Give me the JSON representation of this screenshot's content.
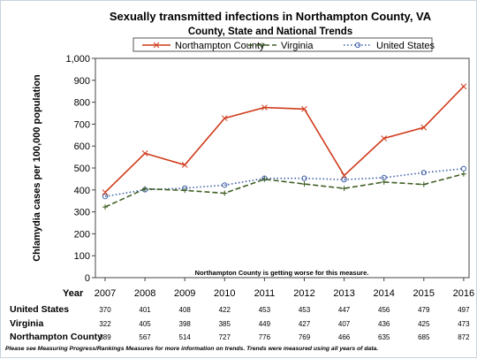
{
  "colors": {
    "northampton": "#d03c1c",
    "virginia": "#3f5f24",
    "united_states": "#3f5fa8",
    "frame": "#c8d2dc",
    "plot_border": "#444444"
  },
  "chart_data": {
    "type": "line",
    "title": "Sexually transmitted infections in Northampton County, VA",
    "subtitle": "County, State and National Trends",
    "xlabel": "Year",
    "ylabel": "Chlamydia cases per 100,000 population",
    "categories": [
      "2007",
      "2008",
      "2009",
      "2010",
      "2011",
      "2012",
      "2013",
      "2014",
      "2015",
      "2016"
    ],
    "ylim": [
      0,
      1000
    ],
    "yticks": [
      0,
      100,
      200,
      300,
      400,
      500,
      600,
      700,
      800,
      900,
      1000
    ],
    "ytick_labels": [
      "0",
      "100",
      "200",
      "300",
      "400",
      "500",
      "600",
      "700",
      "800",
      "900",
      "1,000"
    ],
    "legend_position": "top",
    "grid": false,
    "series": [
      {
        "name": "Northampton County",
        "style": "solid",
        "marker": "x",
        "values": [
          389,
          567,
          514,
          727,
          776,
          769,
          466,
          635,
          685,
          872
        ]
      },
      {
        "name": "Virginia",
        "style": "dashed",
        "marker": "plus",
        "values": [
          322,
          405,
          398,
          385,
          449,
          427,
          407,
          436,
          425,
          473
        ]
      },
      {
        "name": "United States",
        "style": "dotted",
        "marker": "circle",
        "values": [
          370,
          401,
          408,
          422,
          453,
          453,
          447,
          456,
          479,
          497
        ]
      }
    ],
    "annotation": "Northampton County is getting worse for this measure.",
    "table": {
      "header": "Year",
      "rows": [
        {
          "label": "United States",
          "values": [
            "370",
            "401",
            "408",
            "422",
            "453",
            "453",
            "447",
            "456",
            "479",
            "497"
          ]
        },
        {
          "label": "Virginia",
          "values": [
            "322",
            "405",
            "398",
            "385",
            "449",
            "427",
            "407",
            "436",
            "425",
            "473"
          ]
        },
        {
          "label": "Northampton County",
          "values": [
            "389",
            "567",
            "514",
            "727",
            "776",
            "769",
            "466",
            "635",
            "685",
            "872"
          ]
        }
      ]
    },
    "footnote": "Please see Measuring Progress/Rankings Measures for more information on trends. Trends were measured using all years of data."
  }
}
